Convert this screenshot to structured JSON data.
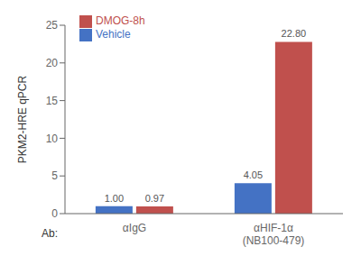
{
  "chart_data": {
    "type": "bar",
    "categories": [
      "αIgG",
      "αHIF-1α\n(NB100-479)"
    ],
    "series": [
      {
        "name": "Vehicle",
        "color": "#4472C4",
        "values": [
          1.0,
          4.05
        ],
        "value_labels": [
          "1.00",
          "4.05"
        ]
      },
      {
        "name": "DMOG-8h",
        "color": "#C0504D",
        "values": [
          0.97,
          22.8
        ],
        "value_labels": [
          "0.97",
          "22.80"
        ]
      }
    ],
    "ylabel": "PKM2-HRE qPCR",
    "xlabel": "Ab:",
    "ylim": [
      0,
      25
    ],
    "yticks": [
      0,
      5,
      10,
      15,
      20,
      25
    ],
    "data_labels": true,
    "legend": "upper left",
    "grid": false
  }
}
